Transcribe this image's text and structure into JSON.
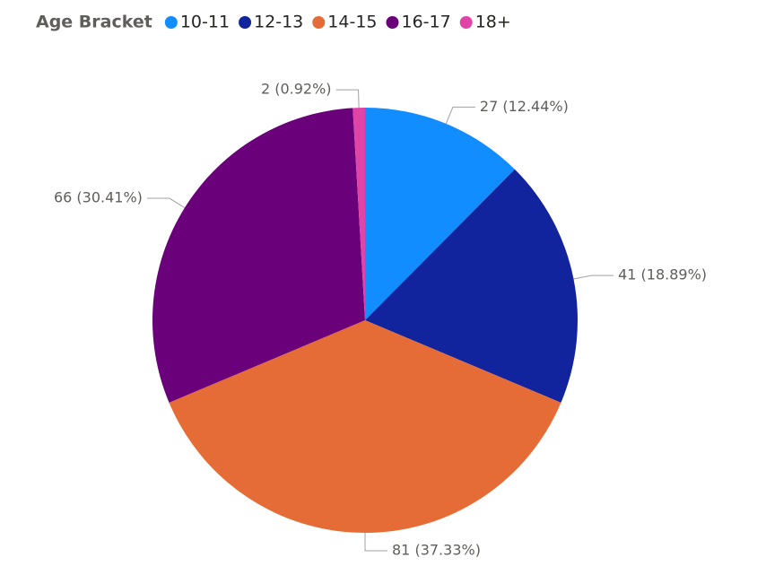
{
  "chart_data": {
    "type": "pie",
    "legend_title": "Age Bracket",
    "categories": [
      "10-11",
      "12-13",
      "14-15",
      "16-17",
      "18+"
    ],
    "values": [
      27,
      41,
      81,
      66,
      2
    ],
    "value_labels": [
      "27 (12.44%)",
      "41 (18.89%)",
      "81 (37.33%)",
      "66 (30.41%)",
      "2 (0.92%)"
    ],
    "colors": [
      "#118DFF",
      "#12239E",
      "#E66C37",
      "#6B007B",
      "#E044A7"
    ],
    "legend": "top-left"
  }
}
